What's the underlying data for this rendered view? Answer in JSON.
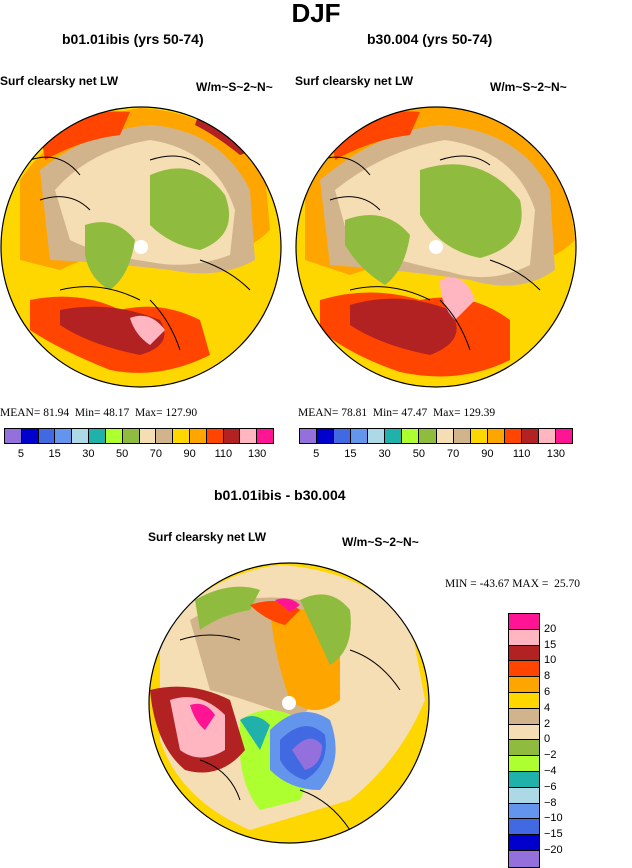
{
  "figure_title": "DJF",
  "panels": [
    {
      "title": "b01.01ibis (yrs 50-74)",
      "field": "Surf clearsky net LW",
      "units": "W/m~S~2~N~",
      "stats": {
        "mean_label": "MEAN=",
        "mean": "81.94",
        "min_label": "Min=",
        "min": "48.17",
        "max_label": "Max=",
        "max": "127.90"
      }
    },
    {
      "title": "b30.004 (yrs 50-74)",
      "field": "Surf clearsky net LW",
      "units": "W/m~S~2~N~",
      "stats": {
        "mean_label": "MEAN=",
        "mean": "78.81",
        "min_label": "Min=",
        "min": "47.47",
        "max_label": "Max=",
        "max": "129.39"
      }
    },
    {
      "title": "b01.01ibis - b30.004",
      "field": "Surf clearsky net LW",
      "units": "W/m~S~2~N~",
      "stats": {
        "min_label": "MIN =",
        "min": "-43.67",
        "max_label": "MAX =",
        "max": "25.70"
      }
    }
  ],
  "colorbar_main": {
    "colors": [
      "#9370db",
      "#0000cd",
      "#4169e1",
      "#6495ed",
      "#add8e6",
      "#20b2aa",
      "#adff2f",
      "#8fbc3f",
      "#f5deb3",
      "#d2b48c",
      "#ffd700",
      "#ffa500",
      "#ff4500",
      "#b22222",
      "#ffb6c1",
      "#ff1493"
    ],
    "ticks": [
      "5",
      "15",
      "30",
      "50",
      "70",
      "90",
      "110",
      "130"
    ]
  },
  "colorbar_diff": {
    "colors": [
      "#ff1493",
      "#ffb6c1",
      "#b22222",
      "#ff4500",
      "#ffa500",
      "#ffd700",
      "#d2b48c",
      "#f5deb3",
      "#8fbc3f",
      "#adff2f",
      "#20b2aa",
      "#add8e6",
      "#6495ed",
      "#4169e1",
      "#0000cd",
      "#9370db"
    ],
    "ticks": [
      "20",
      "15",
      "10",
      "8",
      "6",
      "4",
      "2",
      "0",
      "−2",
      "−4",
      "−6",
      "−8",
      "−10",
      "−15",
      "−20"
    ]
  }
}
